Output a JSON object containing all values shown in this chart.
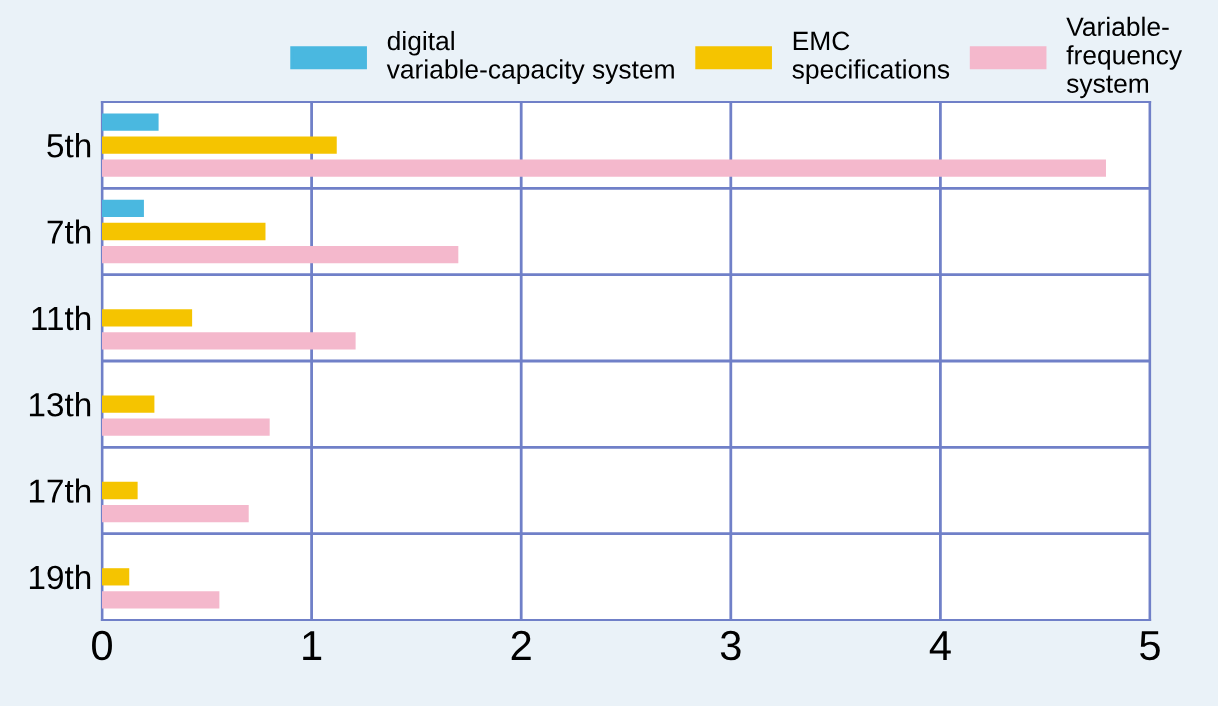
{
  "chart_data": {
    "type": "bar",
    "orientation": "horizontal",
    "categories": [
      "5th",
      "7th",
      "11th",
      "13th",
      "17th",
      "19th"
    ],
    "series": [
      {
        "name": "digital\nvariable-capacity system",
        "color": "#4ab8e0",
        "values": [
          0.27,
          0.2,
          null,
          null,
          null,
          null
        ]
      },
      {
        "name": "EMC\nspecifications",
        "color": "#f5c400",
        "values": [
          1.12,
          0.78,
          0.43,
          0.25,
          0.17,
          0.13
        ]
      },
      {
        "name": "Variable-\nfrequency\nsystem",
        "color": "#f4b8cc",
        "values": [
          4.79,
          1.7,
          1.21,
          0.8,
          0.7,
          0.56
        ]
      }
    ],
    "xlim": [
      0,
      5
    ],
    "xticks": [
      0,
      1,
      2,
      3,
      4,
      5
    ],
    "grid": true,
    "legend": "top right"
  }
}
